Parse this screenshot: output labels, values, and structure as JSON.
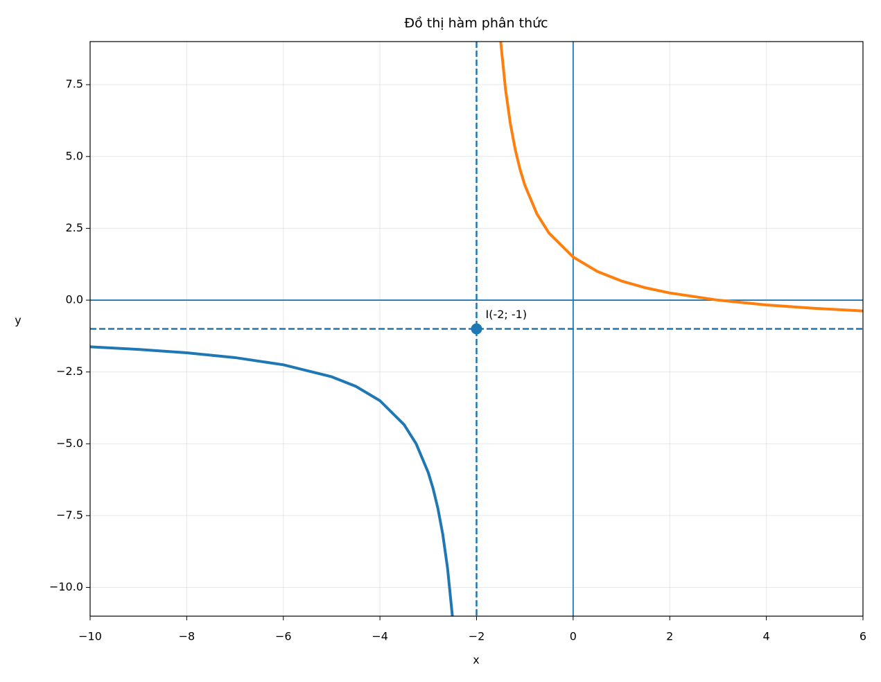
{
  "chart_data": {
    "type": "line",
    "title": "Đồ thị hàm phân thức",
    "x_label": "x",
    "y_label": "y",
    "series": [
      {
        "color": "#1f77b4",
        "x": [
          -10,
          -9,
          -8,
          -7,
          -6,
          -5,
          -4.5,
          -4,
          -3.5,
          -3.25,
          -3,
          -2.9,
          -2.8,
          -2.7,
          -2.6,
          -2.5
        ],
        "values": [
          -1.625,
          -1.714,
          -1.833,
          -2,
          -2.25,
          -2.667,
          -3,
          -3.5,
          -4.333,
          -5,
          -6,
          -6.556,
          -7.25,
          -8.143,
          -9.333,
          -11
        ]
      },
      {
        "color": "#ff7f0e",
        "x": [
          -1.5,
          -1.4,
          -1.3,
          -1.2,
          -1.1,
          -1,
          -0.75,
          -0.5,
          0,
          0.5,
          1,
          1.5,
          2,
          3,
          4,
          5,
          6
        ],
        "values": [
          9,
          7.333,
          6.143,
          5.25,
          4.556,
          4,
          3,
          2.333,
          1.5,
          1,
          0.667,
          0.429,
          0.25,
          0,
          -0.167,
          -0.286,
          -0.375
        ]
      }
    ],
    "asymptotes": {
      "x": -2,
      "y": -1,
      "color": "#1f77b4"
    },
    "axis_lines": {
      "x": 0,
      "y": 0,
      "color": "#1f77b4"
    },
    "point": {
      "x": -2,
      "y": -1,
      "label": "I(-2; -1)",
      "color": "#1f77b4"
    },
    "xlim": [
      -10,
      6
    ],
    "ylim": [
      -11,
      9
    ],
    "xticks": [
      {
        "value": -10,
        "label": "−10"
      },
      {
        "value": -8,
        "label": "−8"
      },
      {
        "value": -6,
        "label": "−6"
      },
      {
        "value": -4,
        "label": "−4"
      },
      {
        "value": -2,
        "label": "−2"
      },
      0,
      2,
      4,
      6
    ],
    "yticks": [
      {
        "value": -10,
        "label": "−10.0"
      },
      {
        "value": -7.5,
        "label": "−7.5"
      },
      {
        "value": -5,
        "label": "−5.0"
      },
      {
        "value": -2.5,
        "label": "−2.5"
      },
      {
        "value": 0,
        "label": "0.0"
      },
      {
        "value": 2.5,
        "label": "2.5"
      },
      {
        "value": 5,
        "label": "5.0"
      },
      {
        "value": 7.5,
        "label": "7.5"
      }
    ],
    "grid": true
  }
}
